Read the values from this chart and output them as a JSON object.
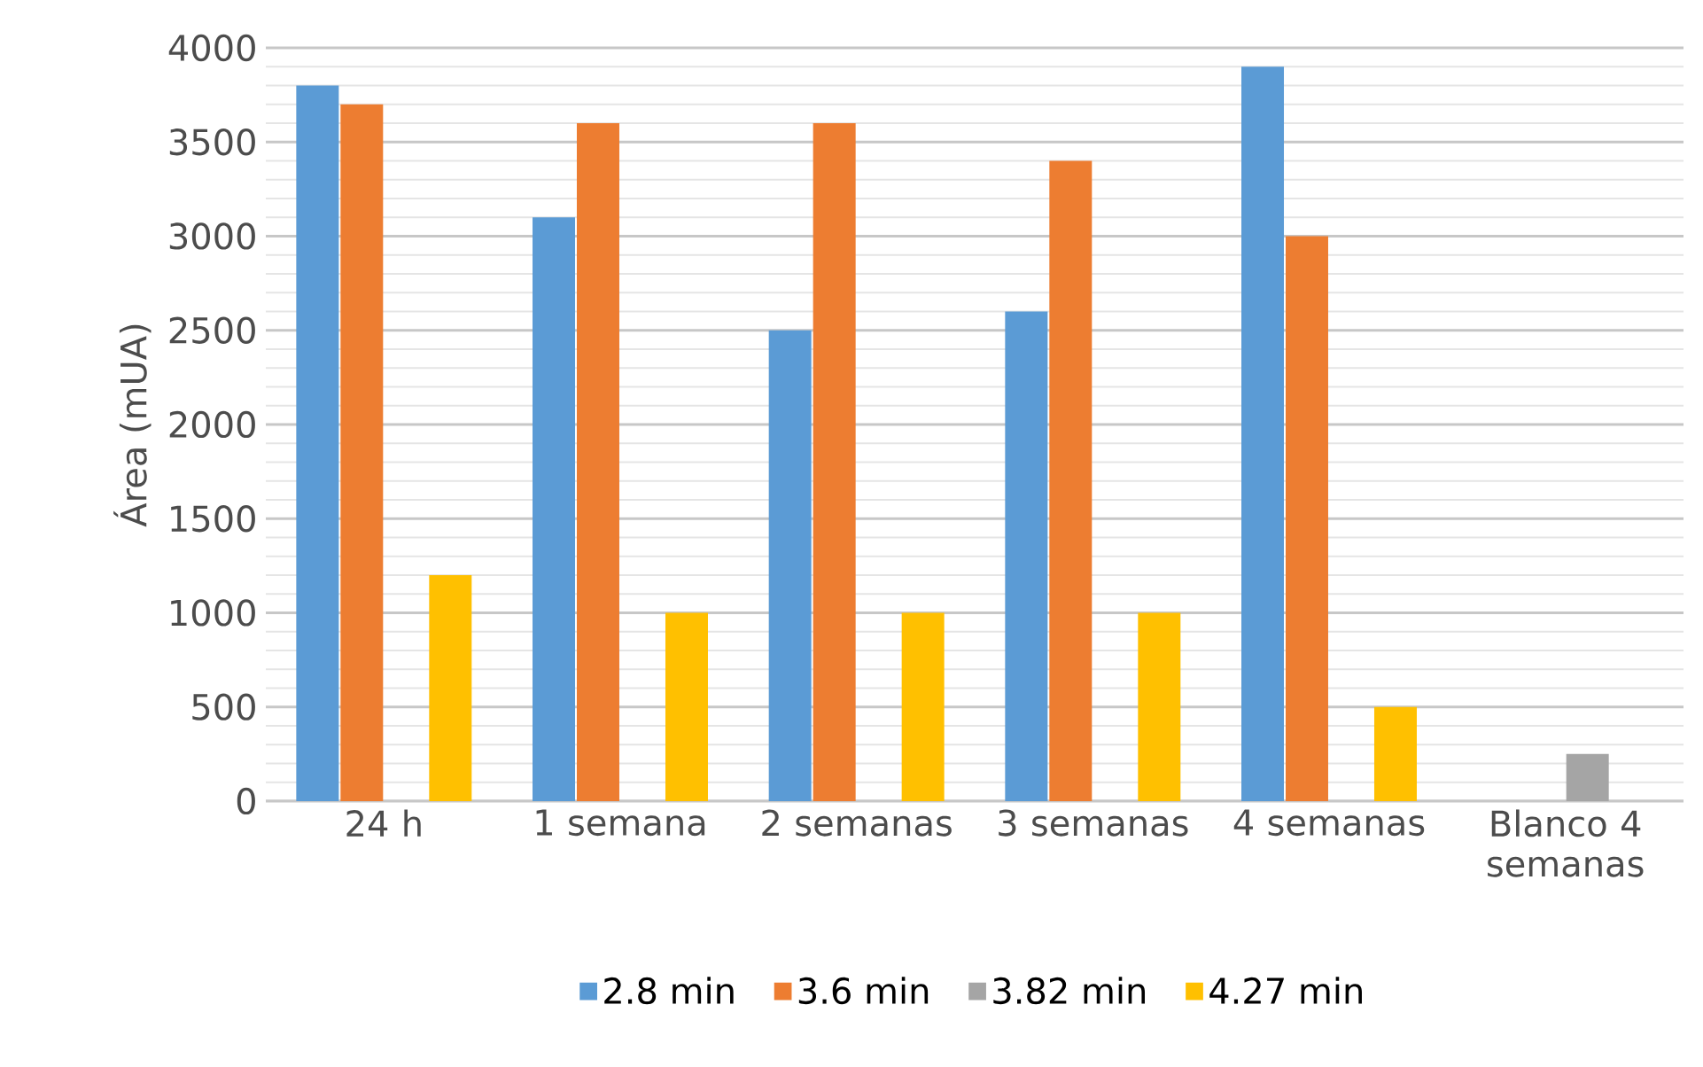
{
  "chart_data": {
    "type": "bar",
    "ylabel": "Área (mUA)",
    "categories": [
      "24 h",
      "1 semana",
      "2 semanas",
      "3 semanas",
      "4 semanas",
      "Blanco 4 semanas"
    ],
    "series": [
      {
        "name": "2.8 min",
        "color": "#5b9bd5",
        "values": [
          3800,
          3100,
          2500,
          2600,
          3900,
          0
        ]
      },
      {
        "name": "3.6 min",
        "color": "#ed7d31",
        "values": [
          3700,
          3600,
          3600,
          3400,
          3000,
          0
        ]
      },
      {
        "name": "3.82 min",
        "color": "#a5a5a5",
        "values": [
          0,
          0,
          0,
          0,
          0,
          250
        ]
      },
      {
        "name": "4.27 min",
        "color": "#ffc000",
        "values": [
          1200,
          1000,
          1000,
          1000,
          500,
          0
        ]
      }
    ],
    "ylim": [
      0,
      4000
    ],
    "yticks": [
      0,
      500,
      1000,
      1500,
      2000,
      2500,
      3000,
      3500,
      4000
    ],
    "grid": "y",
    "legend": "bottom"
  }
}
